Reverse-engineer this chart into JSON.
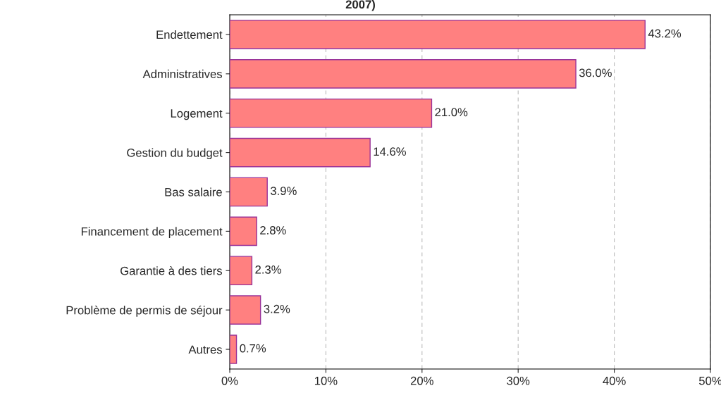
{
  "chart_data": {
    "type": "bar",
    "orientation": "horizontal",
    "title": "2007)",
    "categories": [
      "Endettement",
      "Administratives",
      "Logement",
      "Gestion du budget",
      "Bas salaire",
      "Financement de placement",
      "Garantie à des tiers",
      "Problème de permis de séjour",
      "Autres"
    ],
    "values": [
      43.2,
      36.0,
      21.0,
      14.6,
      3.9,
      2.8,
      2.3,
      3.2,
      0.7
    ],
    "value_labels": [
      "43.2%",
      "36.0%",
      "21.0%",
      "14.6%",
      "3.9%",
      "2.8%",
      "2.3%",
      "3.2%",
      "0.7%"
    ],
    "color": "#ff8080",
    "xlim": [
      0,
      50
    ],
    "xticks": [
      {
        "value": 0,
        "label": "0%"
      },
      {
        "value": 10,
        "label": "10%"
      },
      {
        "value": 20,
        "label": "20%"
      },
      {
        "value": 30,
        "label": "30%"
      },
      {
        "value": 40,
        "label": "40%"
      },
      {
        "value": 50,
        "label": "50%"
      }
    ],
    "grid": "x"
  }
}
